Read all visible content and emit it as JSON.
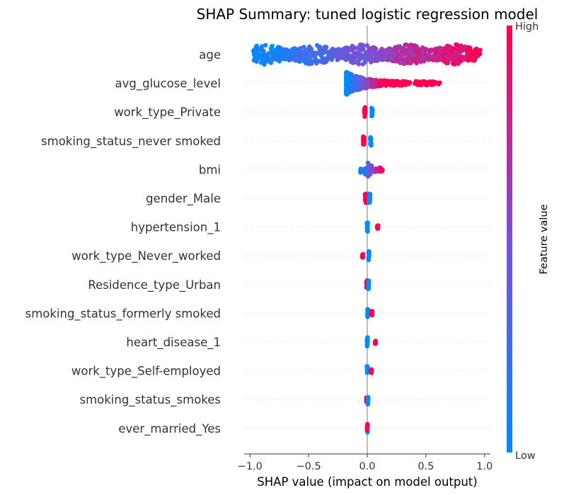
{
  "chart_data": {
    "type": "scatter",
    "subtype": "shap-beeswarm",
    "title": "SHAP Summary: tuned logistic regression model",
    "xlabel": "SHAP value (impact on model output)",
    "xlim": [
      -1.05,
      1.05
    ],
    "xticks": [
      {
        "value": -1.0,
        "label": "−1.0"
      },
      {
        "value": -0.5,
        "label": "−0.5"
      },
      {
        "value": 0.0,
        "label": "0.0"
      },
      {
        "value": 0.5,
        "label": "0.5"
      },
      {
        "value": 1.0,
        "label": "1.0"
      }
    ],
    "colorbar": {
      "label": "Feature value",
      "high_label": "High",
      "low_label": "Low",
      "low_color": "#008bfb",
      "high_color": "#ff0052"
    },
    "features": [
      {
        "name": "age",
        "segments": [
          {
            "x0": -0.97,
            "x1": 0.97,
            "low": -0.97,
            "high": 0.97,
            "spread": 1.0
          }
        ]
      },
      {
        "name": "avg_glucose_level",
        "segments": [
          {
            "x0": -0.18,
            "x1": 0.62,
            "low": -0.18,
            "high": 0.62,
            "spread": 1.0,
            "mode": "skew"
          }
        ]
      },
      {
        "name": "work_type_Private",
        "segments": [
          {
            "x0": -0.025,
            "x1": -0.015,
            "low": 1,
            "high": 1,
            "spread": 0.55
          },
          {
            "x0": 0.035,
            "x1": 0.045,
            "low": 0,
            "high": 0,
            "spread": 0.55
          }
        ]
      },
      {
        "name": "smoking_status_never smoked",
        "segments": [
          {
            "x0": -0.035,
            "x1": -0.025,
            "low": 1,
            "high": 1,
            "spread": 0.55
          },
          {
            "x0": 0.025,
            "x1": 0.035,
            "low": 0,
            "high": 0,
            "spread": 0.55
          }
        ]
      },
      {
        "name": "bmi",
        "segments": [
          {
            "x0": -0.06,
            "x1": 0.13,
            "low": -0.06,
            "high": 0.13,
            "spread": 0.55,
            "mode": "bmi"
          }
        ]
      },
      {
        "name": "gender_Male",
        "segments": [
          {
            "x0": -0.02,
            "x1": -0.01,
            "low": 1,
            "high": 1,
            "spread": 0.55
          },
          {
            "x0": 0.015,
            "x1": 0.025,
            "low": 0,
            "high": 0,
            "spread": 0.55
          }
        ]
      },
      {
        "name": "hypertension_1",
        "segments": [
          {
            "x0": -0.005,
            "x1": 0.005,
            "low": 0,
            "high": 0,
            "spread": 0.55
          },
          {
            "x0": 0.085,
            "x1": 0.095,
            "low": 1,
            "high": 1,
            "spread": 0.2
          }
        ]
      },
      {
        "name": "work_type_Never_worked",
        "segments": [
          {
            "x0": -0.045,
            "x1": -0.035,
            "low": 1,
            "high": 1,
            "spread": 0.2
          },
          {
            "x0": 0.01,
            "x1": 0.016,
            "low": 0,
            "high": 0,
            "spread": 0.55
          }
        ]
      },
      {
        "name": "Residence_type_Urban",
        "segments": [
          {
            "x0": -0.008,
            "x1": 0.0,
            "low": 1,
            "high": 1,
            "spread": 0.55
          },
          {
            "x0": 0.008,
            "x1": 0.015,
            "low": 0,
            "high": 0,
            "spread": 0.55
          }
        ]
      },
      {
        "name": "smoking_status_formerly smoked",
        "segments": [
          {
            "x0": 0.0,
            "x1": 0.005,
            "low": 0,
            "high": 0,
            "spread": 0.55
          },
          {
            "x0": 0.035,
            "x1": 0.042,
            "low": 1,
            "high": 1,
            "spread": 0.25
          }
        ]
      },
      {
        "name": "heart_disease_1",
        "segments": [
          {
            "x0": -0.003,
            "x1": 0.003,
            "low": 0,
            "high": 0,
            "spread": 0.55
          },
          {
            "x0": 0.065,
            "x1": 0.072,
            "low": 1,
            "high": 1,
            "spread": 0.2
          }
        ]
      },
      {
        "name": "work_type_Self-employed",
        "segments": [
          {
            "x0": -0.003,
            "x1": 0.003,
            "low": 0,
            "high": 0,
            "spread": 0.55
          },
          {
            "x0": 0.032,
            "x1": 0.038,
            "low": 1,
            "high": 1,
            "spread": 0.25
          }
        ]
      },
      {
        "name": "smoking_status_smokes",
        "segments": [
          {
            "x0": -0.008,
            "x1": -0.004,
            "low": 1,
            "high": 1,
            "spread": 0.25
          },
          {
            "x0": 0.002,
            "x1": 0.008,
            "low": 0,
            "high": 0,
            "spread": 0.55
          }
        ]
      },
      {
        "name": "ever_married_Yes",
        "segments": [
          {
            "x0": -0.003,
            "x1": 0.003,
            "low": 0,
            "high": 1,
            "spread": 0.55,
            "mode": "mixed"
          }
        ]
      }
    ]
  }
}
